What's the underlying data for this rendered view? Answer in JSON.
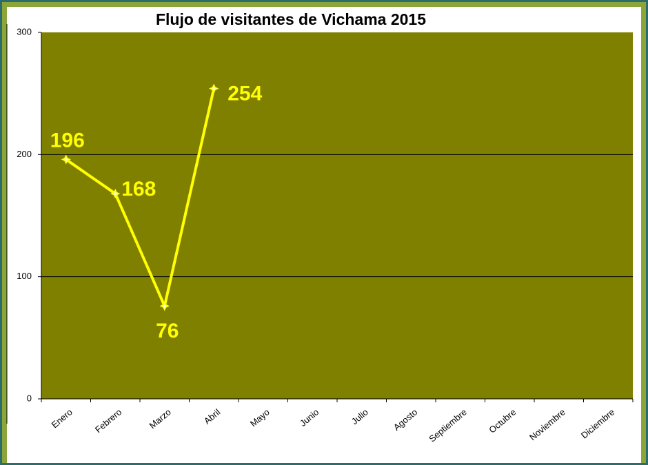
{
  "chart_data": {
    "type": "line",
    "title": "Flujo de visitantes de Vichama 2015",
    "categories": [
      "Enero",
      "Febrero",
      "Marzo",
      "Abril",
      "Mayo",
      "Junio",
      "Julio",
      "Agosto",
      "Septiembre",
      "Octubre",
      "Noviembre",
      "Diciembre"
    ],
    "values": [
      196,
      168,
      76,
      254,
      null,
      null,
      null,
      null,
      null,
      null,
      null,
      null
    ],
    "color": "#ffff00",
    "plot_color": "#808000",
    "ylim": [
      0,
      300
    ],
    "yticks": [
      0,
      100,
      200,
      300
    ],
    "grid": true
  }
}
